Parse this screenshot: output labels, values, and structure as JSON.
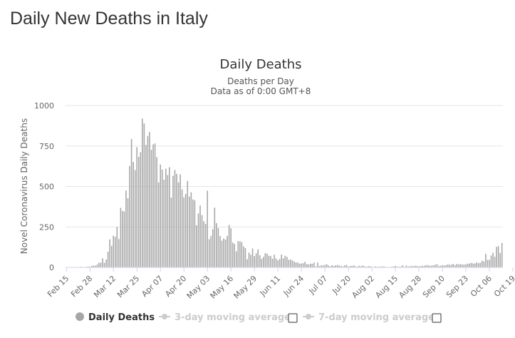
{
  "page": {
    "title": "Daily New Deaths in Italy"
  },
  "chart_data": {
    "type": "bar",
    "title": "Daily Deaths",
    "subtitle_lines": [
      "Deaths per Day",
      "Data as of 0:00 GMT+8"
    ],
    "xlabel": "",
    "ylabel": "Novel Coronavirus Daily Deaths",
    "ylim": [
      0,
      1000
    ],
    "yticks": [
      0,
      250,
      500,
      750,
      1000
    ],
    "grid": true,
    "legend_position": "bottom",
    "x_start_date": "2020-02-15",
    "x_tick_labels": [
      "Feb 15",
      "Feb 28",
      "Mar 12",
      "Mar 25",
      "Apr 07",
      "Apr 20",
      "May 03",
      "May 16",
      "May 29",
      "Jun 11",
      "Jun 24",
      "Jul 07",
      "Jul 20",
      "Aug 02",
      "Aug 15",
      "Aug 28",
      "Sep 10",
      "Sep 23",
      "Oct 06",
      "Oct 19"
    ],
    "series": [
      {
        "name": "Daily Deaths",
        "color": "#a6a6a6",
        "values": [
          0,
          0,
          0,
          0,
          0,
          0,
          1,
          2,
          4,
          1,
          2,
          4,
          5,
          4,
          9,
          12,
          11,
          17,
          29,
          29,
          56,
          28,
          49,
          97,
          173,
          133,
          196,
          189,
          250,
          175,
          368,
          349,
          345,
          475,
          427,
          627,
          793,
          651,
          601,
          743,
          683,
          712,
          919,
          889,
          756,
          812,
          837,
          727,
          760,
          766,
          681,
          525,
          636,
          604,
          542,
          610,
          570,
          619,
          431,
          566,
          602,
          578,
          525,
          575,
          482,
          433,
          454,
          534,
          437,
          464,
          420,
          415,
          260,
          333,
          382,
          323,
          285,
          269,
          474,
          174,
          195,
          236,
          369,
          274,
          243,
          194,
          165,
          179,
          172,
          195,
          262,
          242,
          153,
          145,
          99,
          162,
          161,
          156,
          130,
          119,
          50,
          92,
          78,
          117,
          70,
          87,
          111,
          75,
          53,
          65,
          88,
          85,
          72,
          71,
          53,
          78,
          55,
          44,
          52,
          79,
          56,
          72,
          65,
          47,
          49,
          43,
          36,
          31,
          30,
          23,
          24,
          26,
          34,
          21,
          18,
          23,
          22,
          30,
          6,
          30,
          8,
          13,
          12,
          15,
          20,
          12,
          7,
          14,
          9,
          13,
          15,
          11,
          9,
          6,
          13,
          15,
          5,
          9,
          10,
          12,
          6,
          5,
          10,
          7,
          12,
          6,
          4,
          7,
          8,
          3,
          3,
          6,
          4,
          5,
          5,
          7,
          5,
          2,
          3,
          2,
          4,
          6,
          9,
          5,
          4,
          5,
          13,
          3,
          11,
          6,
          7,
          9,
          8,
          10,
          9,
          6,
          9,
          9,
          10,
          14,
          14,
          10,
          11,
          13,
          16,
          20,
          9,
          10,
          14,
          12,
          14,
          18,
          17,
          16,
          22,
          14,
          21,
          19,
          20,
          18,
          17,
          19,
          23,
          24,
          28,
          24,
          24,
          31,
          26,
          29,
          41,
          37,
          83,
          46,
          47,
          73,
          91,
          66,
          127,
          131,
          89,
          151
        ]
      }
    ],
    "legend": [
      {
        "label": "Daily Deaths",
        "active": true
      },
      {
        "label": "3-day moving average",
        "active": false
      },
      {
        "label": "7-day moving average",
        "active": false
      }
    ]
  }
}
